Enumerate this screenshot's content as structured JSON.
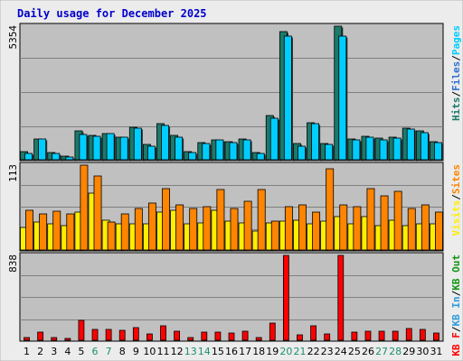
{
  "colors": {
    "frame_fill": "#ececec",
    "panel_bg": "#c0c0c0",
    "grid": "#808080",
    "pages": "#00cdff",
    "hits": "#1b7a6a",
    "visits": "#ffee00",
    "sites": "#ff8400",
    "kbin": "#2d9cdb",
    "kbout": "#119411",
    "kbf": "#ff0000",
    "weekday_label": "#000000",
    "weekend_label": "#1f8f6f"
  },
  "chart_data": [
    {
      "type": "bar",
      "title": "Daily usage for December 2025",
      "categories": [
        "1",
        "2",
        "3",
        "4",
        "5",
        "6",
        "7",
        "8",
        "9",
        "10",
        "11",
        "12",
        "13",
        "14",
        "15",
        "16",
        "17",
        "18",
        "19",
        "20",
        "21",
        "22",
        "23",
        "24",
        "25",
        "26",
        "27",
        "28",
        "29",
        "30",
        "31"
      ],
      "weekend_days": [
        "6",
        "7",
        "13",
        "14",
        "20",
        "21",
        "27",
        "28"
      ],
      "ymax_label": "5354",
      "ylim": [
        0,
        5354
      ],
      "grid": true,
      "right_labels": [
        {
          "text": "Hits",
          "color": "#1b7a6a"
        },
        {
          "text": "/",
          "color": "#000000"
        },
        {
          "text": "Files",
          "color": "#2d6fd0"
        },
        {
          "text": "/",
          "color": "#000000"
        },
        {
          "text": "Pages",
          "color": "#00cdff"
        }
      ],
      "series": [
        {
          "color_key": "hits",
          "values": [
            320,
            820,
            300,
            160,
            1150,
            980,
            1050,
            920,
            1300,
            600,
            1430,
            960,
            320,
            700,
            800,
            740,
            830,
            300,
            1760,
            5120,
            650,
            1480,
            650,
            5354,
            820,
            950,
            860,
            920,
            1250,
            1140,
            710
          ]
        },
        {
          "color_key": "pages",
          "values": [
            260,
            820,
            260,
            120,
            1020,
            940,
            1050,
            920,
            1280,
            560,
            1380,
            920,
            280,
            640,
            780,
            700,
            780,
            260,
            1680,
            4950,
            530,
            1430,
            610,
            4950,
            780,
            920,
            800,
            880,
            1240,
            1100,
            680
          ]
        }
      ]
    },
    {
      "type": "bar",
      "ymax_label": "113",
      "ylim": [
        0,
        113
      ],
      "grid": true,
      "right_labels": [
        {
          "text": "Visits",
          "color": "#ffee00"
        },
        {
          "text": "/",
          "color": "#000000"
        },
        {
          "text": "Sites",
          "color": "#ff8400"
        }
      ],
      "series": [
        {
          "color_key": "visits",
          "values": [
            30,
            37,
            35,
            32,
            50,
            76,
            40,
            35,
            35,
            35,
            50,
            53,
            35,
            36,
            53,
            38,
            36,
            25,
            36,
            38,
            40,
            35,
            38,
            45,
            35,
            45,
            32,
            40,
            32,
            35,
            35
          ]
        },
        {
          "color_key": "sites",
          "values": [
            53,
            48,
            52,
            48,
            113,
            98,
            37,
            48,
            55,
            62,
            82,
            60,
            55,
            58,
            80,
            55,
            65,
            80,
            38,
            58,
            60,
            50,
            108,
            60,
            58,
            82,
            72,
            78,
            55,
            60,
            50
          ]
        }
      ]
    },
    {
      "type": "bar",
      "ymax_label": "838",
      "ylim": [
        0,
        838
      ],
      "grid": true,
      "right_labels": [
        {
          "text": "KB F",
          "color": "#ff0000"
        },
        {
          "text": "/",
          "color": "#000000"
        },
        {
          "text": "KB In",
          "color": "#2d9cdb"
        },
        {
          "text": "/",
          "color": "#000000"
        },
        {
          "text": "KB Out",
          "color": "#119411"
        }
      ],
      "series": [
        {
          "color_key": "kbf",
          "values": [
            30,
            80,
            30,
            20,
            200,
            105,
            110,
            95,
            125,
            65,
            140,
            90,
            30,
            80,
            80,
            75,
            85,
            30,
            170,
            838,
            55,
            145,
            65,
            838,
            80,
            90,
            85,
            85,
            120,
            110,
            75
          ]
        }
      ]
    }
  ]
}
